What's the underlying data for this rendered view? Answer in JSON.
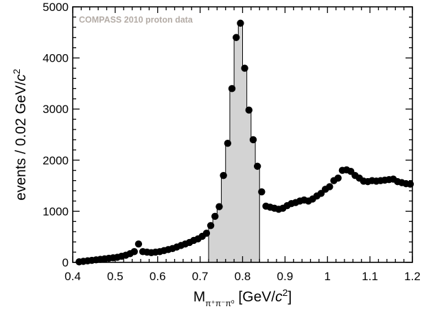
{
  "chart_data": {
    "type": "scatter",
    "annotation": "COMPASS 2010 proton data",
    "xlabel": {
      "main": "M",
      "subscript": "π⁺π⁻π⁰",
      "unit_open": " [GeV/",
      "unit_c": "c",
      "unit_pow": "2",
      "unit_close": "]"
    },
    "ylabel": {
      "main": "events / 0.02 GeV/",
      "unit_c": "c",
      "unit_pow": "2"
    },
    "xlim": [
      0.4,
      1.2
    ],
    "ylim": [
      0,
      5000
    ],
    "xticks": [
      0.4,
      0.5,
      0.6,
      0.7,
      0.8,
      0.9,
      1.0,
      1.1,
      1.2
    ],
    "xtick_labels": [
      "0.4",
      "0.5",
      "0.6",
      "0.7",
      "0.8",
      "0.9",
      "1",
      "1.1",
      "1.2"
    ],
    "yticks": [
      0,
      1000,
      2000,
      3000,
      4000,
      5000
    ],
    "ytick_labels": [
      "0",
      "1000",
      "2000",
      "3000",
      "4000",
      "5000"
    ],
    "shaded_region": {
      "x_range": [
        0.72,
        0.84
      ],
      "fill": "#d3d3d3"
    },
    "marker_color": "#000000",
    "x": [
      0.415,
      0.425,
      0.435,
      0.445,
      0.455,
      0.465,
      0.475,
      0.485,
      0.495,
      0.505,
      0.515,
      0.525,
      0.535,
      0.545,
      0.555,
      0.565,
      0.575,
      0.585,
      0.595,
      0.605,
      0.615,
      0.625,
      0.635,
      0.645,
      0.655,
      0.665,
      0.675,
      0.685,
      0.695,
      0.705,
      0.715,
      0.725,
      0.735,
      0.745,
      0.755,
      0.765,
      0.775,
      0.785,
      0.795,
      0.805,
      0.815,
      0.825,
      0.835,
      0.845,
      0.855,
      0.865,
      0.875,
      0.885,
      0.895,
      0.905,
      0.915,
      0.925,
      0.935,
      0.945,
      0.955,
      0.965,
      0.975,
      0.985,
      0.995,
      1.005,
      1.015,
      1.025,
      1.035,
      1.045,
      1.055,
      1.065,
      1.075,
      1.085,
      1.095,
      1.105,
      1.115,
      1.125,
      1.135,
      1.145,
      1.155,
      1.165,
      1.175,
      1.185,
      1.195
    ],
    "y": [
      10,
      20,
      30,
      40,
      50,
      60,
      70,
      80,
      90,
      100,
      120,
      140,
      170,
      210,
      360,
      210,
      200,
      190,
      200,
      210,
      230,
      250,
      270,
      300,
      330,
      360,
      390,
      430,
      460,
      510,
      570,
      720,
      900,
      1090,
      1700,
      2330,
      3400,
      4400,
      4680,
      3800,
      2980,
      2400,
      1880,
      1380,
      1100,
      1080,
      1060,
      1040,
      1060,
      1110,
      1150,
      1170,
      1200,
      1220,
      1200,
      1240,
      1300,
      1350,
      1430,
      1480,
      1600,
      1650,
      1800,
      1810,
      1780,
      1700,
      1650,
      1590,
      1580,
      1600,
      1590,
      1600,
      1610,
      1620,
      1630,
      1580,
      1560,
      1540,
      1530
    ]
  }
}
